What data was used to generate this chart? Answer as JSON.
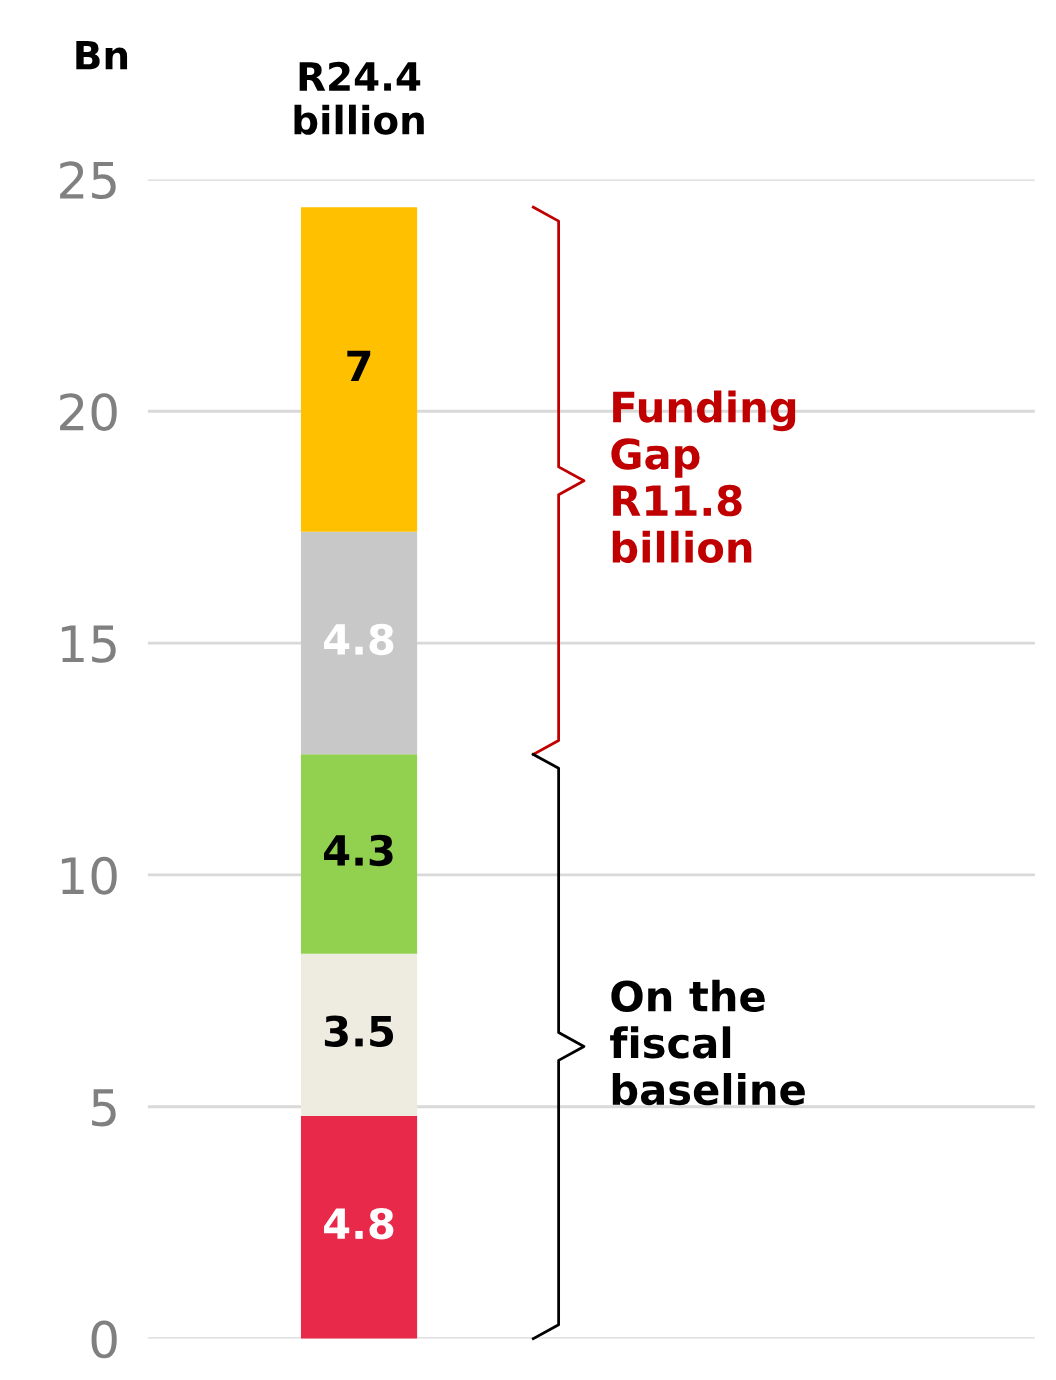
{
  "chart_data": {
    "type": "bar",
    "stacked": true,
    "ylabel": "Bn",
    "categories": [
      null
    ],
    "series": [
      {
        "color": "#e8294a",
        "values": [
          4.8
        ]
      },
      {
        "color": "#eeebe0",
        "values": [
          3.5
        ]
      },
      {
        "color": "#92d050",
        "values": [
          4.3
        ]
      },
      {
        "color": "#c8c8c8",
        "values": [
          4.8
        ]
      },
      {
        "color": "#ffc000",
        "values": [
          7
        ]
      }
    ],
    "data_labels": true,
    "totals": [
      "R24.4\nbillion"
    ],
    "ylim": [
      0,
      25
    ],
    "yticks": [
      0,
      5,
      10,
      15,
      20,
      25
    ],
    "grid": "y",
    "annotations": [
      "Funding\nGap\nR11.8\nbillion",
      "On the\nfiscal\nbaseline"
    ]
  }
}
